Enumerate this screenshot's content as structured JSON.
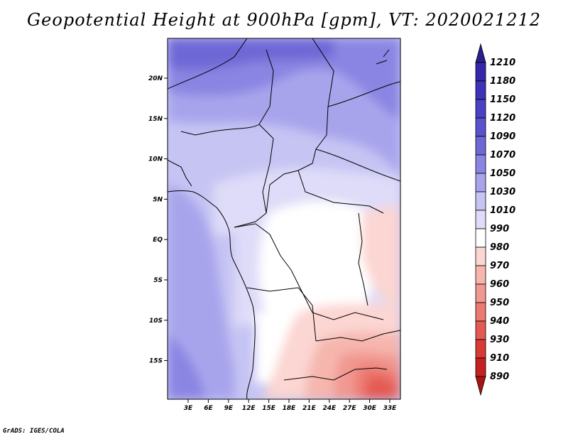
{
  "title": "Geopotential Height at 900hPa [gpm], VT: 2020021212",
  "credit": "GrADS: IGES/COLA",
  "map": {
    "variable": "Geopotential Height",
    "level": "900hPa",
    "units": "gpm",
    "valid_time": "2020021212",
    "lat_labels": [
      "20N",
      "15N",
      "10N",
      "5N",
      "EQ",
      "5S",
      "10S",
      "15S"
    ],
    "lon_labels": [
      "3E",
      "6E",
      "9E",
      "12E",
      "15E",
      "18E",
      "21E",
      "24E",
      "27E",
      "30E",
      "33E"
    ]
  },
  "colorbar": {
    "levels": [
      "1210",
      "1180",
      "1150",
      "1120",
      "1090",
      "1070",
      "1050",
      "1030",
      "1010",
      "990",
      "980",
      "970",
      "960",
      "950",
      "940",
      "930",
      "910",
      "890"
    ],
    "colors": [
      "#2a1f8e",
      "#3428a8",
      "#3d32b8",
      "#4a40c4",
      "#5a52cc",
      "#6e68d6",
      "#8a85e2",
      "#a8a4ec",
      "#c6c4f3",
      "#dedcf8",
      "#ffffff",
      "#fbd6d2",
      "#f6b6ae",
      "#f19890",
      "#ec7a72",
      "#e45a52",
      "#d83a34",
      "#c42220",
      "#a81414"
    ]
  }
}
